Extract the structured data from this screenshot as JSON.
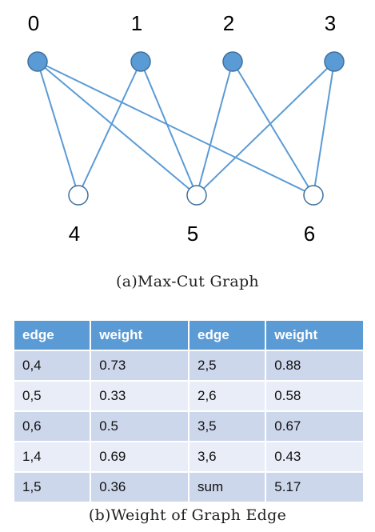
{
  "graph": {
    "top_nodes": [
      {
        "id": "0",
        "color": "#5b9bd5"
      },
      {
        "id": "1",
        "color": "#5b9bd5"
      },
      {
        "id": "2",
        "color": "#5b9bd5"
      },
      {
        "id": "3",
        "color": "#5b9bd5"
      }
    ],
    "bottom_nodes": [
      {
        "id": "4",
        "color": "#ffffff"
      },
      {
        "id": "5",
        "color": "#ffffff"
      },
      {
        "id": "6",
        "color": "#ffffff"
      }
    ],
    "edges": [
      [
        "0",
        "4"
      ],
      [
        "0",
        "5"
      ],
      [
        "0",
        "6"
      ],
      [
        "1",
        "4"
      ],
      [
        "1",
        "5"
      ],
      [
        "2",
        "5"
      ],
      [
        "2",
        "6"
      ],
      [
        "3",
        "5"
      ],
      [
        "3",
        "6"
      ]
    ],
    "edge_color": "#5b9bd5",
    "caption": "(a)Max-Cut Graph"
  },
  "table": {
    "headers": [
      "edge",
      "weight",
      "edge",
      "weight"
    ],
    "rows": [
      [
        "0,4",
        "0.73",
        "2,5",
        "0.88"
      ],
      [
        "0,5",
        "0.33",
        "2,6",
        "0.58"
      ],
      [
        "0,6",
        "0.5",
        "3,5",
        "0.67"
      ],
      [
        "1,4",
        "0.69",
        "3,6",
        "0.43"
      ],
      [
        "1,5",
        "0.36",
        "sum",
        "5.17"
      ]
    ],
    "caption": "(b)Weight of Graph Edge"
  }
}
